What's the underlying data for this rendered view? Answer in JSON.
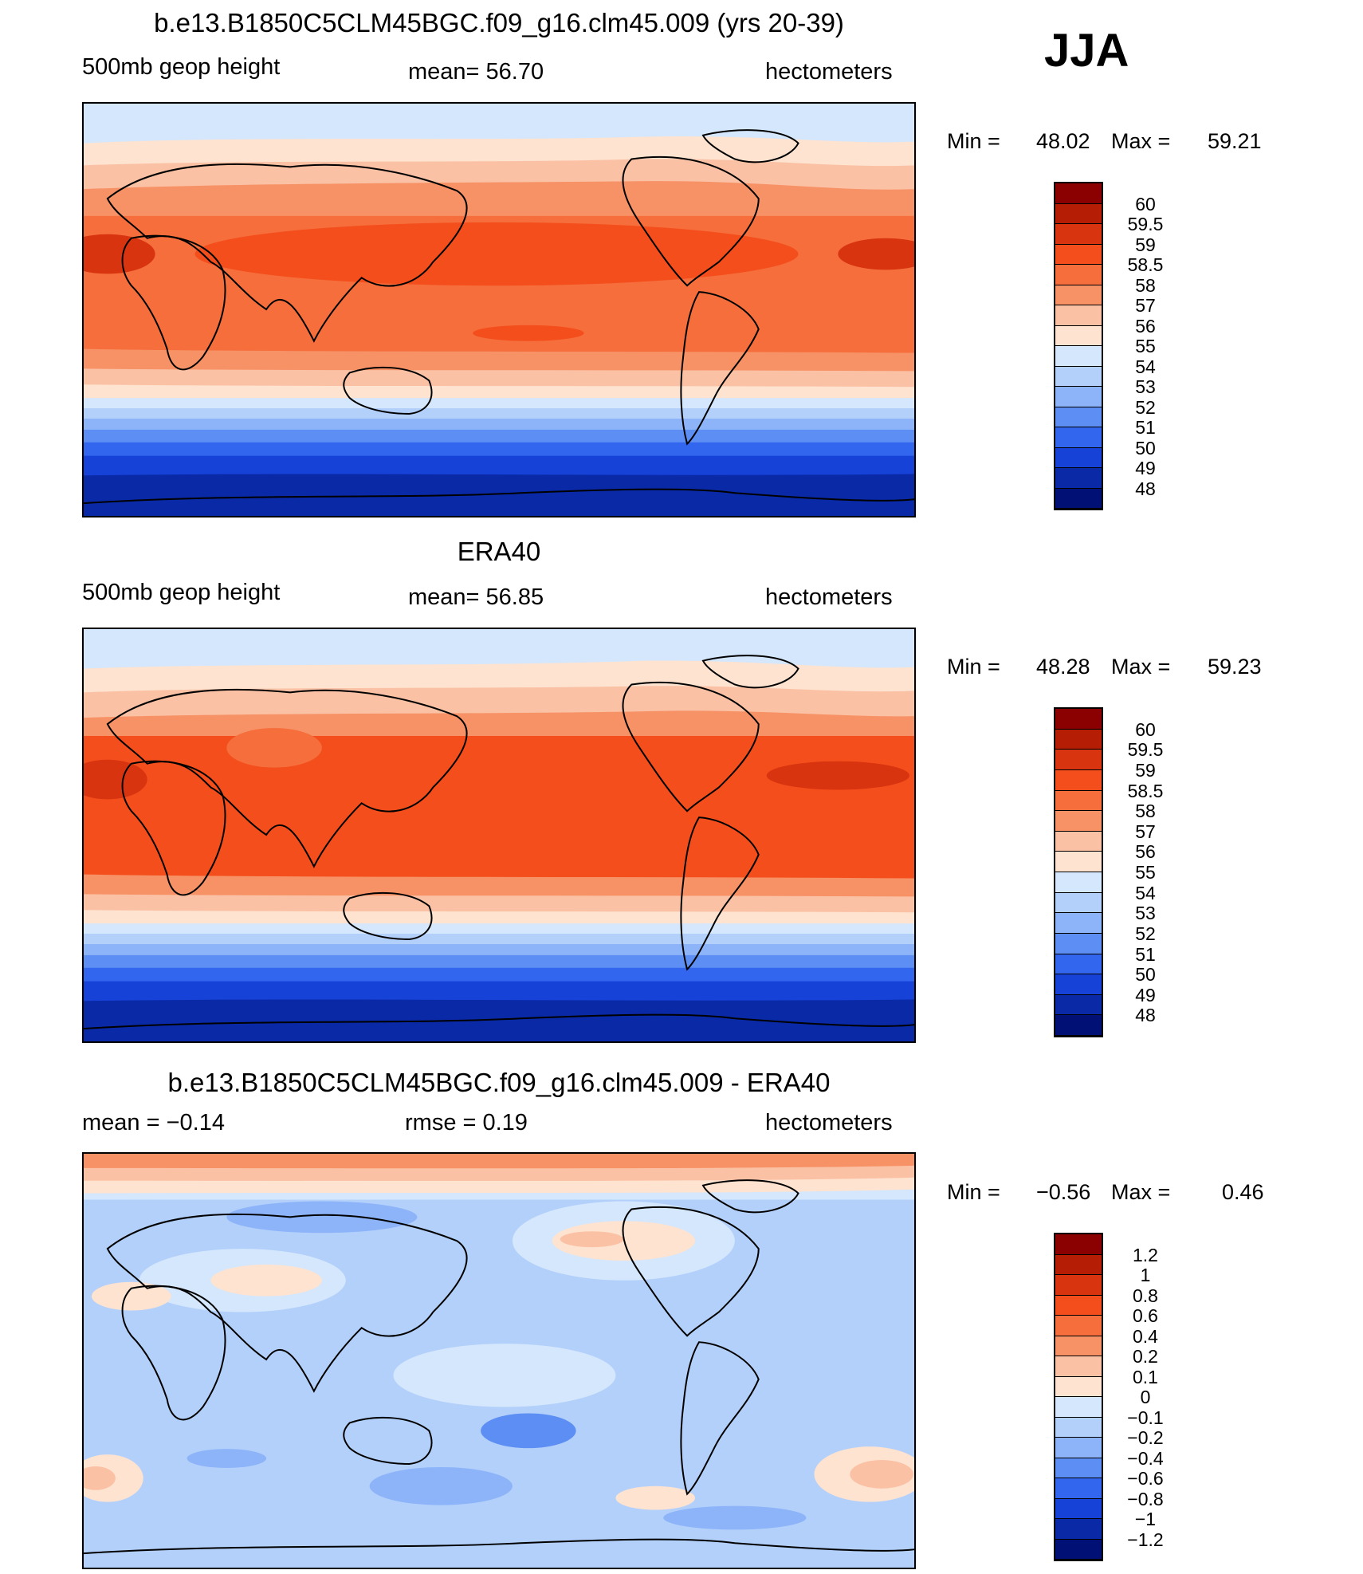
{
  "season": "JJA",
  "panels": [
    {
      "title": "b.e13.B1850C5CLM45BGC.f09_g16.clm45.009 (yrs 20-39)",
      "left_label": "500mb geop height",
      "center_label": "mean=   56.70",
      "units": "hectometers",
      "min_label": "Min =",
      "min_value": "48.02",
      "max_label": "Max =",
      "max_value": "59.21",
      "colorbar_labels": [
        "60",
        "59.5",
        "59",
        "58.5",
        "58",
        "57",
        "56",
        "55",
        "54",
        "53",
        "52",
        "51",
        "50",
        "49",
        "48"
      ],
      "colorbar_colors": [
        "#8b0000",
        "#b51e05",
        "#d83410",
        "#f44e1c",
        "#f56e3c",
        "#f79166",
        "#fbc1a4",
        "#fde3d0",
        "#d4e7fc",
        "#b3d0fb",
        "#8db4f9",
        "#5c8ef3",
        "#3366ee",
        "#1642d8",
        "#0a29a7",
        "#001075"
      ]
    },
    {
      "title": "ERA40",
      "left_label": "500mb geop height",
      "center_label": "mean=   56.85",
      "units": "hectometers",
      "min_label": "Min =",
      "min_value": "48.28",
      "max_label": "Max =",
      "max_value": "59.23",
      "colorbar_labels": [
        "60",
        "59.5",
        "59",
        "58.5",
        "58",
        "57",
        "56",
        "55",
        "54",
        "53",
        "52",
        "51",
        "50",
        "49",
        "48"
      ],
      "colorbar_colors": [
        "#8b0000",
        "#b51e05",
        "#d83410",
        "#f44e1c",
        "#f56e3c",
        "#f79166",
        "#fbc1a4",
        "#fde3d0",
        "#d4e7fc",
        "#b3d0fb",
        "#8db4f9",
        "#5c8ef3",
        "#3366ee",
        "#1642d8",
        "#0a29a7",
        "#001075"
      ]
    },
    {
      "title": "b.e13.B1850C5CLM45BGC.f09_g16.clm45.009 - ERA40",
      "left_label": "mean =   −0.14",
      "center_label": "rmse =    0.19",
      "units": "hectometers",
      "min_label": "Min =",
      "min_value": "−0.56",
      "max_label": "Max =",
      "max_value": "0.46",
      "colorbar_labels": [
        "1.2",
        "1",
        "0.8",
        "0.6",
        "0.4",
        "0.2",
        "0.1",
        "0",
        "−0.1",
        "−0.2",
        "−0.4",
        "−0.6",
        "−0.8",
        "−1",
        "−1.2"
      ],
      "colorbar_colors": [
        "#8b0000",
        "#b51e05",
        "#d83410",
        "#f44e1c",
        "#f56e3c",
        "#f79166",
        "#fbc1a4",
        "#fde3d0",
        "#d4e7fc",
        "#b3d0fb",
        "#8db4f9",
        "#5c8ef3",
        "#3366ee",
        "#1642d8",
        "#0a29a7",
        "#001075"
      ]
    }
  ]
}
